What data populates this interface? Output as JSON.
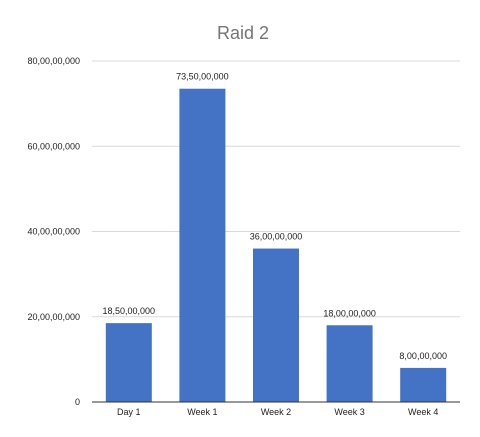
{
  "chart_data": {
    "type": "bar",
    "title": "Raid 2",
    "categories": [
      "Day 1",
      "Week 1",
      "Week 2",
      "Week 3",
      "Week 4"
    ],
    "values": [
      185000000,
      735000000,
      360000000,
      180000000,
      80000000
    ],
    "data_labels": [
      "18,50,00,000",
      "73,50,00,000",
      "36,00,00,000",
      "18,00,00,000",
      "8,00,00,000"
    ],
    "ylim": [
      0,
      800000000
    ],
    "yticks": [
      0,
      200000000,
      400000000,
      600000000,
      800000000
    ],
    "ytick_labels": [
      "0",
      "20,00,00,000",
      "40,00,00,000",
      "60,00,00,000",
      "80,00,00,000"
    ],
    "grid": true,
    "legend": "none",
    "bar_color": "#4472c4"
  }
}
